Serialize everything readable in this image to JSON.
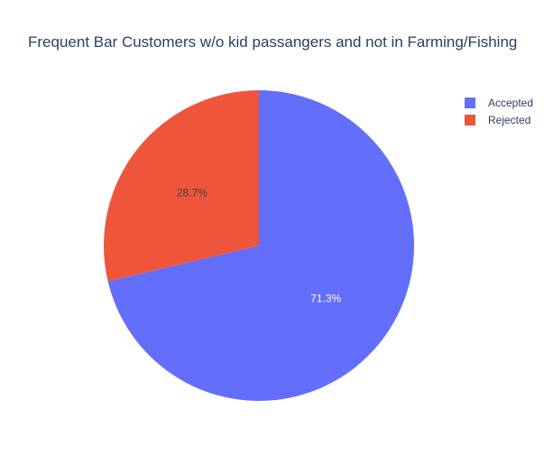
{
  "chart_data": {
    "type": "pie",
    "title": "Frequent Bar Customers w/o kid passangers and not in Farming/Fishing",
    "labels": [
      "Accepted",
      "Rejected"
    ],
    "values": [
      71.3,
      28.7
    ],
    "value_labels": [
      "71.3%",
      "28.7%"
    ],
    "colors": [
      "#636efa",
      "#ef553b"
    ],
    "label_colors": [
      "#ffffff",
      "#444444"
    ],
    "legend_position": "top-right",
    "direction": "clockwise",
    "start_angle": "12 o'clock"
  }
}
